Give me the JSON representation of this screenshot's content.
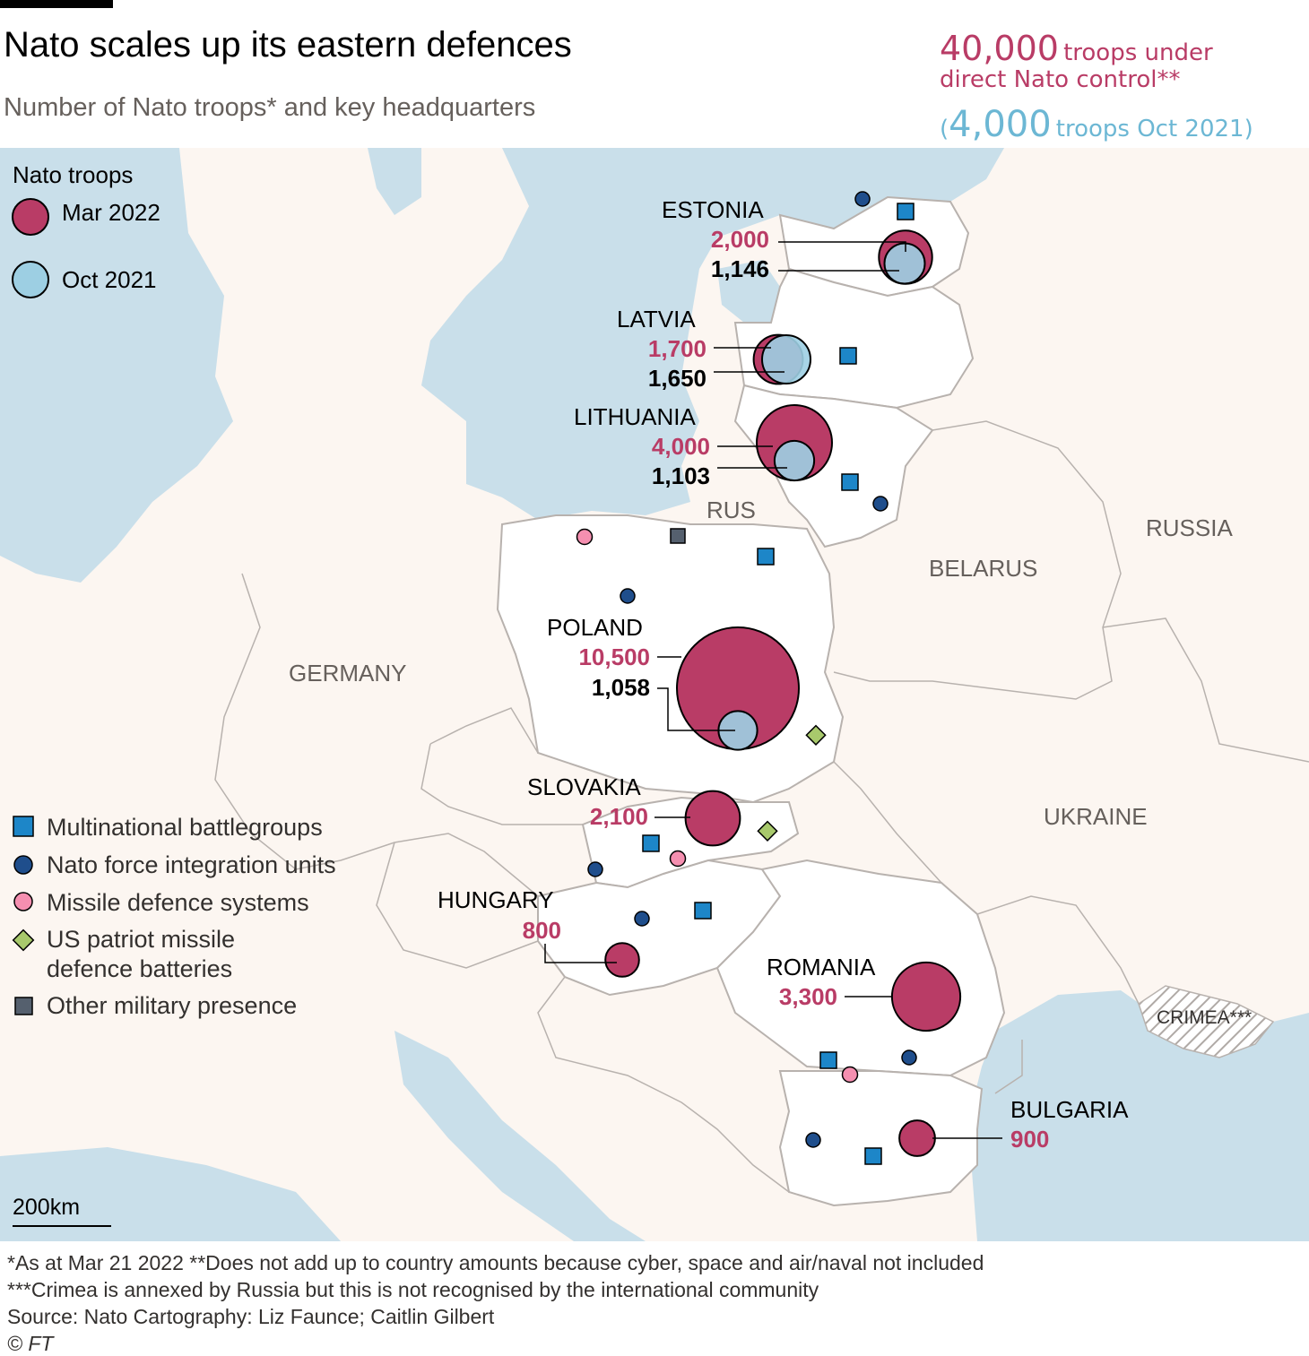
{
  "header": {
    "title": "Nato scales up its eastern defences",
    "subtitle": "Number of Nato troops* and key headquarters"
  },
  "totals": {
    "mar_value": "40,000",
    "mar_text": "troops under",
    "mar_text2": "direct Nato control**",
    "oct_open": "(",
    "oct_value": "4,000",
    "oct_text": "troops Oct 2021)"
  },
  "legend": {
    "title": "Nato troops",
    "mar_label": "Mar 2022",
    "oct_label": "Oct 2021",
    "battlegroups": "Multinational battlegroups",
    "nfiu": "Nato force integration units",
    "missile": "Missile defence systems",
    "patriot_1": "US patriot missile",
    "patriot_2": "defence batteries",
    "other": "Other military presence"
  },
  "countries": {
    "estonia": {
      "name": "ESTONIA",
      "mar": "2,000",
      "oct": "1,146"
    },
    "latvia": {
      "name": "LATVIA",
      "mar": "1,700",
      "oct": "1,650"
    },
    "lithuania": {
      "name": "LITHUANIA",
      "mar": "4,000",
      "oct": "1,103"
    },
    "poland": {
      "name": "POLAND",
      "mar": "10,500",
      "oct": "1,058"
    },
    "slovakia": {
      "name": "SLOVAKIA",
      "mar": "2,100"
    },
    "hungary": {
      "name": "HUNGARY",
      "mar": "800"
    },
    "romania": {
      "name": "ROMANIA",
      "mar": "3,300"
    },
    "bulgaria": {
      "name": "BULGARIA",
      "mar": "900"
    }
  },
  "map_labels": {
    "rus": "RUS",
    "russia": "RUSSIA",
    "belarus": "BELARUS",
    "germany": "GERMANY",
    "ukraine": "UKRAINE",
    "crimea": "CRIMEA***"
  },
  "scale": "200km",
  "colors": {
    "mar": "#b93c66",
    "oct": "#9dcfe3",
    "sea": "#c9dfea",
    "land": "#fcf6f1",
    "nato_land": "#ffffff",
    "battlegroup": "#1d86c8",
    "nfiu": "#1f4e8c",
    "missile": "#f58fb0",
    "patriot": "#a8c96c",
    "other": "#55606e"
  },
  "footer": {
    "note1": "*As at Mar 21 2022    **Does not add up to country amounts because cyber, space and air/naval not included",
    "note2": "***Crimea is annexed by Russia but this is not recognised by the international community",
    "source": "Source: Nato      Cartography: Liz Faunce; Caitlin Gilbert",
    "copyright": "© FT"
  }
}
